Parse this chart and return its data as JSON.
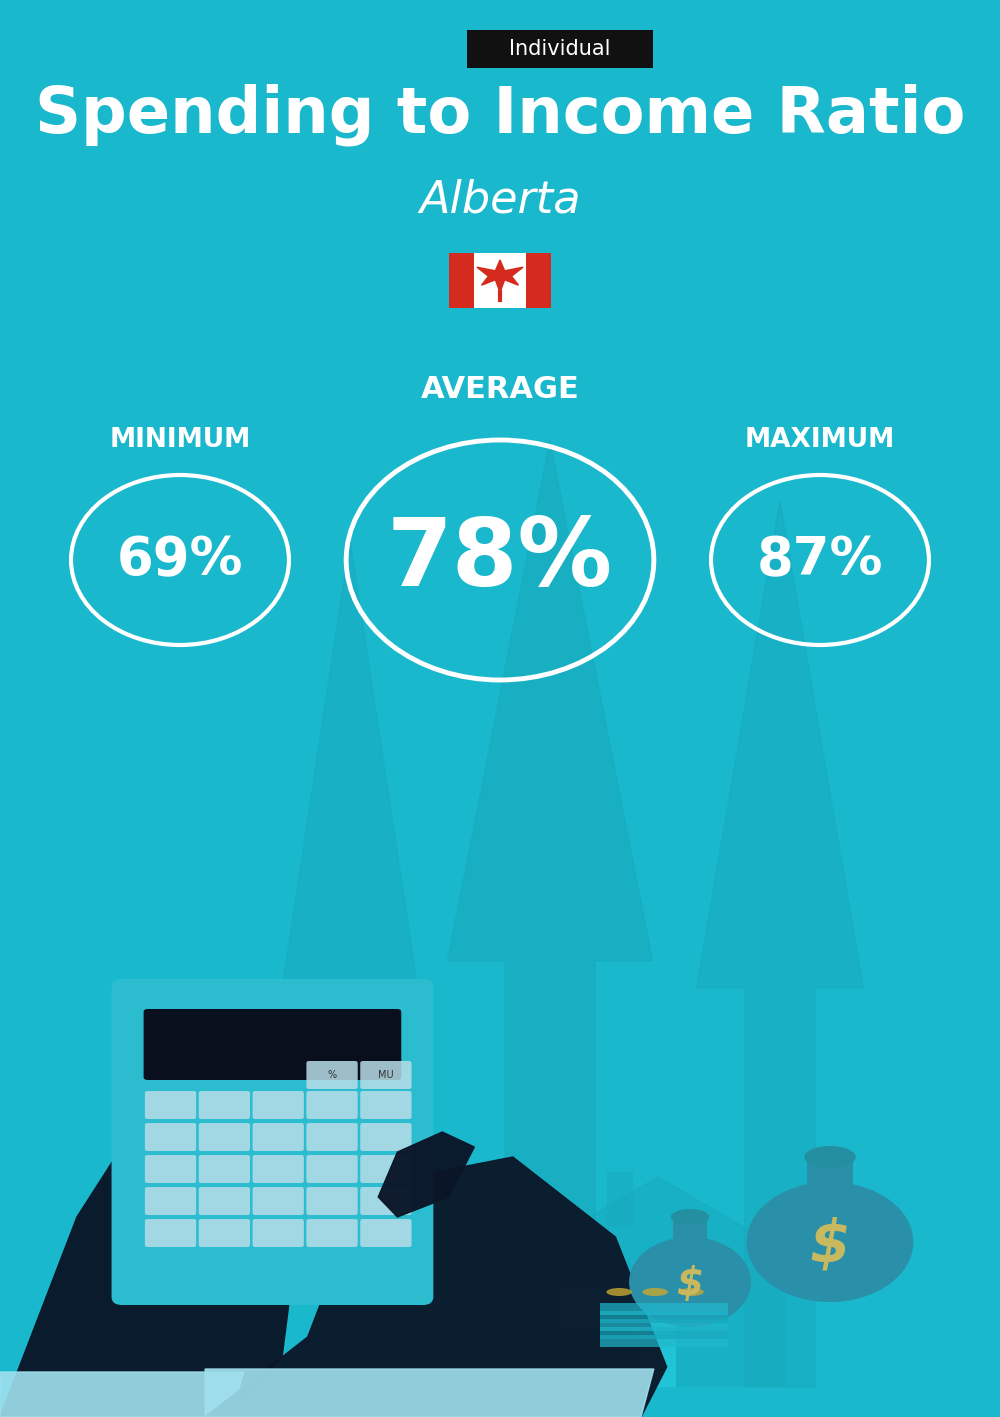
{
  "bg_color": "#1ab8cc",
  "title": "Spending to Income Ratio",
  "subtitle": "Alberta",
  "tag_label": "Individual",
  "tag_bg": "#111111",
  "tag_text_color": "#ffffff",
  "title_color": "#ffffff",
  "subtitle_color": "#ffffff",
  "min_label": "MINIMUM",
  "avg_label": "AVERAGE",
  "max_label": "MAXIMUM",
  "min_value": "69%",
  "avg_value": "78%",
  "max_value": "87%",
  "circle_edge_color": "#ffffff",
  "circle_text_color": "#ffffff",
  "label_color": "#ffffff",
  "arrow_color": "#17a8bc",
  "dark_color": "#0a1628",
  "calc_color": "#2bbdcf",
  "screen_color": "#0a0f1e",
  "btn_color": "#b8dde8",
  "cuff_color": "#a0e0ee",
  "bag_color": "#2a8fa8",
  "dollar_color": "#c8b860",
  "house_color": "#18aabf",
  "fig_width": 10.0,
  "fig_height": 14.17,
  "dpi": 100
}
